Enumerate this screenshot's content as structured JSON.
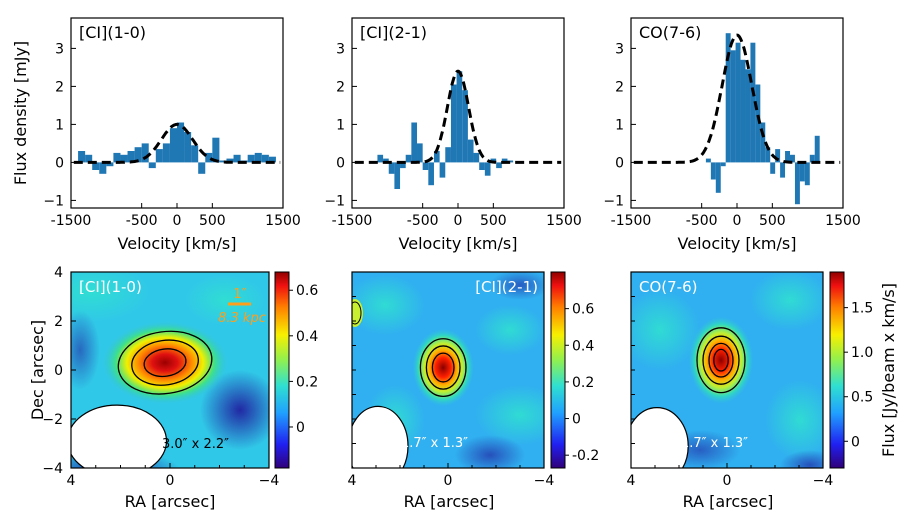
{
  "ylabel_spectra": "Flux density [mJy]",
  "xlabel_spectra": "Velocity [km/s]",
  "xlabel_maps": "RA [arcsec]",
  "ylabel_maps": "Dec [arcsec]",
  "colorbar_label": "Flux [Jy/beam x km/s]",
  "spectra": [
    {
      "title": "[CI](1-0)",
      "xlim": [
        -1500,
        1500
      ],
      "ylim": [
        -1.2,
        3.8
      ],
      "xticks": [
        -1500,
        -500,
        0,
        500,
        1500
      ],
      "yticks": [
        -1,
        0,
        1,
        2,
        3
      ],
      "bin_width": 100,
      "bin_centers": [
        -1350,
        -1250,
        -1150,
        -1050,
        -950,
        -850,
        -750,
        -650,
        -550,
        -450,
        -350,
        -250,
        -150,
        -50,
        50,
        150,
        250,
        350,
        450,
        550,
        650,
        750,
        850,
        950,
        1050,
        1150,
        1250,
        1350
      ],
      "bin_values": [
        0.3,
        0.2,
        -0.2,
        -0.3,
        -0.1,
        0.25,
        0.2,
        0.3,
        0.4,
        0.5,
        -0.15,
        0.35,
        0.5,
        0.9,
        1.05,
        0.8,
        0.45,
        -0.3,
        0.25,
        0.65,
        0.05,
        0.1,
        0.2,
        0.05,
        0.2,
        0.25,
        0.2,
        0.15
      ],
      "gauss_fit": {
        "amp": 1.0,
        "center": 0,
        "sigma": 220
      },
      "bar_color": "#1f77b4"
    },
    {
      "title": "[CI](2-1)",
      "xlim": [
        -1500,
        1500
      ],
      "ylim": [
        -1.2,
        3.8
      ],
      "xticks": [
        -1500,
        -500,
        0,
        500,
        1500
      ],
      "yticks": [
        -1,
        0,
        1,
        2,
        3
      ],
      "bin_width": 80,
      "bin_centers": [
        -1100,
        -1020,
        -940,
        -860,
        -780,
        -700,
        -620,
        -540,
        -460,
        -380,
        -300,
        -220,
        -140,
        -60,
        20,
        100,
        180,
        260,
        340,
        420,
        500,
        580,
        660,
        740
      ],
      "bin_values": [
        0.2,
        0.1,
        -0.3,
        -0.7,
        -0.15,
        0.2,
        1.05,
        0.5,
        -0.2,
        -0.6,
        0.3,
        -0.4,
        0.4,
        2.05,
        2.4,
        1.9,
        0.6,
        0.25,
        -0.2,
        -0.35,
        0.1,
        -0.15,
        0.1,
        0.05
      ],
      "gauss_fit": {
        "amp": 2.4,
        "center": 0,
        "sigma": 150
      },
      "bar_color": "#1f77b4"
    },
    {
      "title": "CO(7-6)",
      "xlim": [
        -1500,
        1500
      ],
      "ylim": [
        -1.2,
        3.8
      ],
      "xticks": [
        -1500,
        -500,
        0,
        500,
        1500
      ],
      "yticks": [
        -1,
        0,
        1,
        2,
        3
      ],
      "bin_width": 70,
      "bin_centers": [
        -405,
        -335,
        -265,
        -195,
        -125,
        -55,
        15,
        85,
        155,
        225,
        295,
        365,
        435,
        505,
        575,
        645,
        715,
        785,
        855,
        925,
        995,
        1065,
        1135
      ],
      "bin_values": [
        0.1,
        -0.45,
        -0.8,
        -0.1,
        3.4,
        2.95,
        3.15,
        2.7,
        2.45,
        3.15,
        2.05,
        1.05,
        0.4,
        -0.3,
        0.35,
        -0.4,
        0.3,
        0.2,
        -1.1,
        -0.5,
        -0.6,
        0.2,
        0.7
      ],
      "gauss_fit": {
        "amp": 3.35,
        "center": 0,
        "sigma": 210
      },
      "bar_color": "#1f77b4"
    }
  ],
  "maps": [
    {
      "title": "[CI](1-0)",
      "xticks": [
        4,
        0,
        -4
      ],
      "yticks": [
        4,
        2,
        0,
        -2,
        -4
      ],
      "scale_bar_top": "1″",
      "scale_bar_bottom": "8.3 kpc",
      "scale_color": "#ff9e1b",
      "beam_label": "3.0″ x 2.2″",
      "beam_label_color": "#000000",
      "cbar_ticks": [
        "0.6",
        "0.4",
        "0.2",
        "0"
      ],
      "cbar_tick_values": [
        0.6,
        0.4,
        0.2,
        0
      ],
      "cbar_min": -0.18,
      "cbar_max": 0.68,
      "source_center": [
        0.2,
        0.3
      ],
      "contour_radii": [
        [
          1.9,
          1.25
        ],
        [
          1.35,
          0.9
        ],
        [
          0.85,
          0.55
        ]
      ],
      "beam": [
        2.0,
        1.45
      ]
    },
    {
      "title": "[CI](2-1)",
      "xticks": [
        4,
        0,
        -4
      ],
      "yticks": [],
      "beam_label": "1.7″ x 1.3″",
      "beam_label_color": "#ffffff",
      "cbar_ticks": [
        "0.6",
        "0.4",
        "0.2",
        "0",
        "-0.2"
      ],
      "cbar_tick_values": [
        0.6,
        0.4,
        0.2,
        0,
        -0.2
      ],
      "cbar_min": -0.27,
      "cbar_max": 0.8,
      "source_center": [
        0.2,
        0.1
      ],
      "contour_radii": [
        [
          0.95,
          1.2
        ],
        [
          0.7,
          0.9
        ],
        [
          0.45,
          0.6
        ]
      ],
      "beam": [
        1.25,
        1.65
      ]
    },
    {
      "title": "CO(7-6)",
      "xticks": [
        4,
        0,
        -4
      ],
      "yticks": [],
      "beam_label": "1.7″ x 1.3″",
      "beam_label_color": "#ffffff",
      "cbar_ticks": [
        "1.5",
        "1.0",
        "0.5",
        "0"
      ],
      "cbar_tick_values": [
        1.5,
        1.0,
        0.5,
        0
      ],
      "cbar_min": -0.3,
      "cbar_max": 1.9,
      "source_center": [
        0.25,
        0.4
      ],
      "contour_radii": [
        [
          1.0,
          1.35
        ],
        [
          0.75,
          1.0
        ],
        [
          0.5,
          0.7
        ],
        [
          0.3,
          0.45
        ]
      ],
      "beam": [
        1.3,
        1.6
      ]
    }
  ]
}
